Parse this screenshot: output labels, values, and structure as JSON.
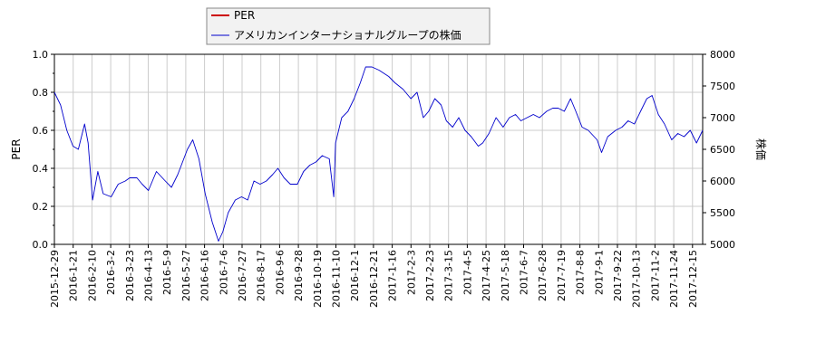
{
  "chart_data": {
    "type": "line",
    "legend": {
      "placement": "top-center",
      "entries": [
        {
          "label": "PER",
          "color": "#cc0000"
        },
        {
          "label": "アメリカンインターナショナルグループの株価",
          "color": "#0000cc"
        }
      ]
    },
    "y_left": {
      "label": "PER",
      "range": [
        0.0,
        1.0
      ],
      "ticks": [
        "0.0",
        "0.2",
        "0.4",
        "0.6",
        "0.8",
        "1.0"
      ]
    },
    "y_right": {
      "label": "株価",
      "range": [
        5000,
        8000
      ],
      "ticks": [
        "5000",
        "5500",
        "6000",
        "6500",
        "7000",
        "7500",
        "8000"
      ]
    },
    "x": {
      "range": [
        "2015-12-29",
        "2017-12-29"
      ],
      "ticks": [
        "2015-12-29",
        "2016-1-21",
        "2016-2-10",
        "2016-3-2",
        "2016-3-23",
        "2016-4-13",
        "2016-5-9",
        "2016-5-27",
        "2016-6-16",
        "2016-7-6",
        "2016-7-27",
        "2016-8-17",
        "2016-9-6",
        "2016-9-28",
        "2016-10-19",
        "2016-11-10",
        "2016-12-1",
        "2016-12-21",
        "2017-1-16",
        "2017-2-3",
        "2017-2-23",
        "2017-3-15",
        "2017-4-5",
        "2017-4-25",
        "2017-5-18",
        "2017-6-7",
        "2017-6-28",
        "2017-7-19",
        "2017-8-8",
        "2017-9-1",
        "2017-9-22",
        "2017-10-13",
        "2017-11-2",
        "2017-11-24",
        "2017-12-15"
      ]
    },
    "grid": true,
    "series": [
      {
        "name": "アメリカンインターナショナルグループの株価",
        "axis": "right",
        "color": "#0000cc",
        "points": [
          [
            "2015-12-29",
            7400
          ],
          [
            "2016-1-5",
            7200
          ],
          [
            "2016-1-12",
            6800
          ],
          [
            "2016-1-19",
            6550
          ],
          [
            "2016-1-25",
            6500
          ],
          [
            "2016-2-1",
            6900
          ],
          [
            "2016-2-5",
            6600
          ],
          [
            "2016-2-10",
            5700
          ],
          [
            "2016-2-16",
            6150
          ],
          [
            "2016-2-22",
            5800
          ],
          [
            "2016-3-2",
            5750
          ],
          [
            "2016-3-10",
            5950
          ],
          [
            "2016-3-18",
            6000
          ],
          [
            "2016-3-23",
            6050
          ],
          [
            "2016-3-31",
            6050
          ],
          [
            "2016-4-6",
            5950
          ],
          [
            "2016-4-13",
            5850
          ],
          [
            "2016-4-22",
            6150
          ],
          [
            "2016-5-2",
            6000
          ],
          [
            "2016-5-9",
            5900
          ],
          [
            "2016-5-16",
            6100
          ],
          [
            "2016-5-27",
            6500
          ],
          [
            "2016-6-2",
            6650
          ],
          [
            "2016-6-9",
            6350
          ],
          [
            "2016-6-16",
            5800
          ],
          [
            "2016-6-24",
            5350
          ],
          [
            "2016-7-1",
            5050
          ],
          [
            "2016-7-6",
            5200
          ],
          [
            "2016-7-12",
            5500
          ],
          [
            "2016-7-20",
            5700
          ],
          [
            "2016-7-27",
            5750
          ],
          [
            "2016-8-3",
            5700
          ],
          [
            "2016-8-10",
            6000
          ],
          [
            "2016-8-17",
            5950
          ],
          [
            "2016-8-24",
            6000
          ],
          [
            "2016-8-31",
            6100
          ],
          [
            "2016-9-6",
            6200
          ],
          [
            "2016-9-13",
            6050
          ],
          [
            "2016-9-20",
            5950
          ],
          [
            "2016-9-28",
            5950
          ],
          [
            "2016-10-5",
            6150
          ],
          [
            "2016-10-12",
            6250
          ],
          [
            "2016-10-19",
            6300
          ],
          [
            "2016-10-26",
            6400
          ],
          [
            "2016-11-3",
            6350
          ],
          [
            "2016-11-8",
            5750
          ],
          [
            "2016-11-10",
            6600
          ],
          [
            "2016-11-17",
            7000
          ],
          [
            "2016-11-24",
            7100
          ],
          [
            "2016-12-1",
            7300
          ],
          [
            "2016-12-8",
            7550
          ],
          [
            "2016-12-14",
            7800
          ],
          [
            "2016-12-21",
            7800
          ],
          [
            "2016-12-29",
            7750
          ],
          [
            "2017-1-9",
            7650
          ],
          [
            "2017-1-16",
            7550
          ],
          [
            "2017-1-25",
            7450
          ],
          [
            "2017-2-3",
            7300
          ],
          [
            "2017-2-10",
            7400
          ],
          [
            "2017-2-17",
            7000
          ],
          [
            "2017-2-23",
            7100
          ],
          [
            "2017-3-2",
            7300
          ],
          [
            "2017-3-9",
            7200
          ],
          [
            "2017-3-15",
            6950
          ],
          [
            "2017-3-22",
            6850
          ],
          [
            "2017-3-29",
            7000
          ],
          [
            "2017-4-5",
            6800
          ],
          [
            "2017-4-12",
            6700
          ],
          [
            "2017-4-20",
            6550
          ],
          [
            "2017-4-25",
            6600
          ],
          [
            "2017-5-2",
            6750
          ],
          [
            "2017-5-10",
            7000
          ],
          [
            "2017-5-18",
            6850
          ],
          [
            "2017-5-25",
            7000
          ],
          [
            "2017-6-1",
            7050
          ],
          [
            "2017-6-7",
            6950
          ],
          [
            "2017-6-14",
            7000
          ],
          [
            "2017-6-21",
            7050
          ],
          [
            "2017-6-28",
            7000
          ],
          [
            "2017-7-6",
            7100
          ],
          [
            "2017-7-13",
            7150
          ],
          [
            "2017-7-19",
            7150
          ],
          [
            "2017-7-26",
            7100
          ],
          [
            "2017-8-2",
            7300
          ],
          [
            "2017-8-8",
            7100
          ],
          [
            "2017-8-15",
            6850
          ],
          [
            "2017-8-22",
            6800
          ],
          [
            "2017-9-1",
            6650
          ],
          [
            "2017-9-6",
            6450
          ],
          [
            "2017-9-13",
            6700
          ],
          [
            "2017-9-22",
            6800
          ],
          [
            "2017-9-29",
            6850
          ],
          [
            "2017-10-6",
            6950
          ],
          [
            "2017-10-13",
            6900
          ],
          [
            "2017-10-20",
            7100
          ],
          [
            "2017-10-27",
            7300
          ],
          [
            "2017-11-2",
            7350
          ],
          [
            "2017-11-9",
            7050
          ],
          [
            "2017-11-16",
            6900
          ],
          [
            "2017-11-24",
            6650
          ],
          [
            "2017-12-1",
            6750
          ],
          [
            "2017-12-8",
            6700
          ],
          [
            "2017-12-15",
            6800
          ],
          [
            "2017-12-22",
            6600
          ],
          [
            "2017-12-29",
            6800
          ]
        ]
      }
    ]
  }
}
